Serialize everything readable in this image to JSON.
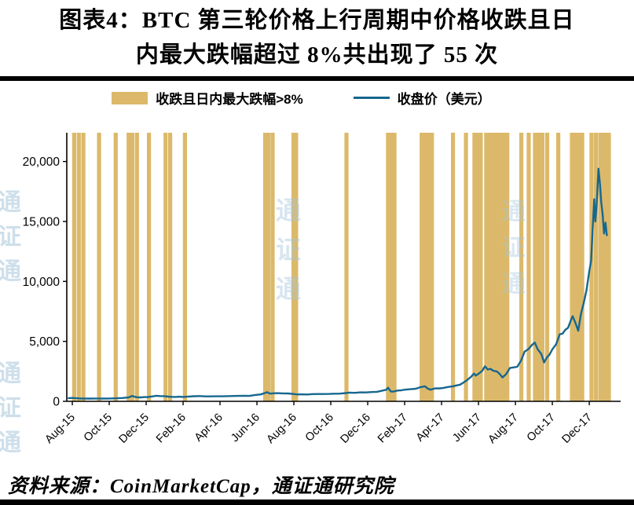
{
  "header": {
    "title_line1": "图表4：BTC 第三轮价格上行周期中价格收跌且日",
    "title_line2": "内最大跌幅超过 8%共出现了 55 次"
  },
  "legend": {
    "bars_label": "收跌且日内最大跌幅>8%",
    "line_label": "收盘价（美元）"
  },
  "footer": {
    "source": "资料来源：CoinMarketCap，通证通研究院"
  },
  "watermark": {
    "text": "通证通"
  },
  "colors": {
    "bar": "#DCB96A",
    "line": "#17678F",
    "axis": "#000000",
    "watermark": "#A7C6DC"
  },
  "chart_data": {
    "type": "line",
    "title": "BTC 第三轮价格上行周期中价格收跌且日内最大跌幅超过 8%共出现了 55 次",
    "xlabel": "",
    "ylabel": "",
    "x_axis": {
      "tick_labels": [
        "Aug-15",
        "Oct-15",
        "Dec-15",
        "Feb-16",
        "Apr-16",
        "Jun-16",
        "Aug-16",
        "Oct-16",
        "Dec-16",
        "Feb-17",
        "Apr-17",
        "Jun-17",
        "Aug-17",
        "Oct-17",
        "Dec-17"
      ],
      "tick_months": [
        0,
        2,
        4,
        6,
        8,
        10,
        12,
        14,
        16,
        18,
        20,
        22,
        24,
        26,
        28
      ],
      "range_months": [
        -0.3,
        29.7
      ]
    },
    "y_axis": {
      "ticks": [
        0,
        5000,
        10000,
        15000,
        20000
      ],
      "tick_labels": [
        "0",
        "5,000",
        "10,000",
        "15,000",
        "20,000"
      ],
      "max": 22400
    },
    "series": [
      {
        "name": "收盘价（美元）",
        "type": "line",
        "color": "#17678F",
        "points": [
          [
            -0.2,
            270
          ],
          [
            0,
            281
          ],
          [
            0.3,
            247
          ],
          [
            0.55,
            230
          ],
          [
            0.8,
            231
          ],
          [
            1,
            229
          ],
          [
            1.3,
            236
          ],
          [
            1.6,
            231
          ],
          [
            2,
            238
          ],
          [
            2.4,
            255
          ],
          [
            2.7,
            276
          ],
          [
            2.9,
            305
          ],
          [
            3.05,
            330
          ],
          [
            3.15,
            395
          ],
          [
            3.25,
            450
          ],
          [
            3.35,
            390
          ],
          [
            3.5,
            340
          ],
          [
            3.7,
            325
          ],
          [
            3.9,
            355
          ],
          [
            4.1,
            362
          ],
          [
            4.35,
            415
          ],
          [
            4.55,
            462
          ],
          [
            4.75,
            437
          ],
          [
            5,
            434
          ],
          [
            5.2,
            395
          ],
          [
            5.4,
            372
          ],
          [
            5.6,
            365
          ],
          [
            5.8,
            385
          ],
          [
            6,
            370
          ],
          [
            6.3,
            398
          ],
          [
            6.6,
            425
          ],
          [
            6.9,
            437
          ],
          [
            7.2,
            415
          ],
          [
            7.5,
            412
          ],
          [
            7.8,
            417
          ],
          [
            8.1,
            418
          ],
          [
            8.4,
            430
          ],
          [
            8.7,
            448
          ],
          [
            9,
            452
          ],
          [
            9.3,
            457
          ],
          [
            9.6,
            455
          ],
          [
            9.9,
            530
          ],
          [
            10.2,
            575
          ],
          [
            10.45,
            700
          ],
          [
            10.55,
            765
          ],
          [
            10.7,
            640
          ],
          [
            10.9,
            670
          ],
          [
            11.1,
            678
          ],
          [
            11.4,
            660
          ],
          [
            11.7,
            655
          ],
          [
            12,
            607
          ],
          [
            12.15,
            575
          ],
          [
            12.4,
            580
          ],
          [
            12.7,
            572
          ],
          [
            13,
            605
          ],
          [
            13.3,
            610
          ],
          [
            13.6,
            608
          ],
          [
            13.9,
            614
          ],
          [
            14.2,
            635
          ],
          [
            14.5,
            640
          ],
          [
            14.8,
            690
          ],
          [
            15,
            729
          ],
          [
            15.3,
            710
          ],
          [
            15.6,
            745
          ],
          [
            15.9,
            742
          ],
          [
            16.2,
            770
          ],
          [
            16.5,
            790
          ],
          [
            16.8,
            900
          ],
          [
            17,
            963
          ],
          [
            17.1,
            1130
          ],
          [
            17.25,
            825
          ],
          [
            17.4,
            815
          ],
          [
            17.6,
            895
          ],
          [
            17.8,
            920
          ],
          [
            18,
            970
          ],
          [
            18.3,
            1010
          ],
          [
            18.6,
            1050
          ],
          [
            18.85,
            1180
          ],
          [
            19,
            1222
          ],
          [
            19.1,
            1255
          ],
          [
            19.25,
            1060
          ],
          [
            19.4,
            970
          ],
          [
            19.55,
            1040
          ],
          [
            19.7,
            1090
          ],
          [
            19.9,
            1080
          ],
          [
            20.1,
            1120
          ],
          [
            20.35,
            1200
          ],
          [
            20.6,
            1250
          ],
          [
            20.8,
            1320
          ],
          [
            21,
            1390
          ],
          [
            21.2,
            1580
          ],
          [
            21.4,
            1790
          ],
          [
            21.6,
            2050
          ],
          [
            21.75,
            2320
          ],
          [
            21.85,
            2150
          ],
          [
            22,
            2300
          ],
          [
            22.2,
            2540
          ],
          [
            22.35,
            2920
          ],
          [
            22.5,
            2650
          ],
          [
            22.65,
            2710
          ],
          [
            22.8,
            2550
          ],
          [
            23,
            2480
          ],
          [
            23.15,
            2280
          ],
          [
            23.3,
            1990
          ],
          [
            23.5,
            2280
          ],
          [
            23.7,
            2780
          ],
          [
            23.9,
            2830
          ],
          [
            24.1,
            2880
          ],
          [
            24.3,
            3380
          ],
          [
            24.5,
            4150
          ],
          [
            24.7,
            4350
          ],
          [
            24.9,
            4700
          ],
          [
            25.05,
            4900
          ],
          [
            25.2,
            4350
          ],
          [
            25.4,
            3950
          ],
          [
            25.55,
            3240
          ],
          [
            25.7,
            3650
          ],
          [
            25.85,
            3900
          ],
          [
            26,
            4340
          ],
          [
            26.2,
            4750
          ],
          [
            26.4,
            5600
          ],
          [
            26.55,
            5640
          ],
          [
            26.7,
            5960
          ],
          [
            26.85,
            6130
          ],
          [
            27,
            6750
          ],
          [
            27.1,
            7100
          ],
          [
            27.25,
            6550
          ],
          [
            27.4,
            5880
          ],
          [
            27.55,
            7300
          ],
          [
            27.7,
            8200
          ],
          [
            27.85,
            9250
          ],
          [
            28,
            10860
          ],
          [
            28.1,
            11700
          ],
          [
            28.18,
            14300
          ],
          [
            28.27,
            16850
          ],
          [
            28.33,
            15000
          ],
          [
            28.4,
            16450
          ],
          [
            28.5,
            19400
          ],
          [
            28.58,
            18100
          ],
          [
            28.65,
            16600
          ],
          [
            28.72,
            15650
          ],
          [
            28.8,
            14000
          ],
          [
            28.88,
            14900
          ],
          [
            28.95,
            13850
          ]
        ]
      },
      {
        "name": "收跌且日内最大跌幅>8%",
        "type": "event-bars",
        "color": "#DCB96A",
        "count": 55,
        "full_height": true,
        "positions_months": [
          0.1,
          0.35,
          0.6,
          1.45,
          2.35,
          3.05,
          3.25,
          3.5,
          4.15,
          5.05,
          5.3,
          6.1,
          10.45,
          10.62,
          10.85,
          11.98,
          12.12,
          14.85,
          17.1,
          17.28,
          17.45,
          18.92,
          19.12,
          19.28,
          19.48,
          20.62,
          21.32,
          21.78,
          21.92,
          22.12,
          22.42,
          22.58,
          22.78,
          22.97,
          23.17,
          23.36,
          23.56,
          24.32,
          24.72,
          25.06,
          25.26,
          25.46,
          25.72,
          26.32,
          27.06,
          27.26,
          27.42,
          27.62,
          28.12,
          28.36,
          28.6,
          28.72,
          28.86,
          28.96,
          29.06
        ]
      }
    ]
  }
}
